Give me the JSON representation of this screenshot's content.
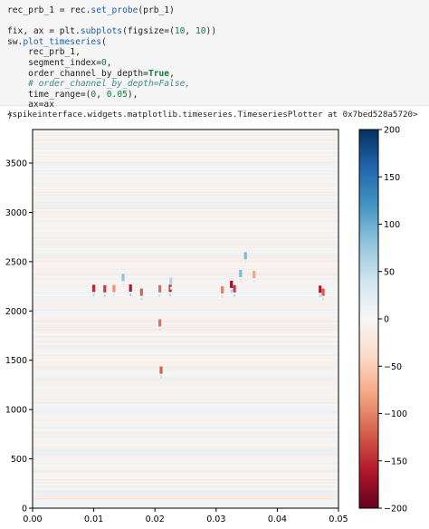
{
  "code_cell": {
    "lines": [
      [
        {
          "t": "rec_prb_1 = rec.",
          "c": "name"
        },
        {
          "t": "set_probe",
          "c": "fn"
        },
        {
          "t": "(prb_1)",
          "c": "name"
        }
      ],
      [],
      [
        {
          "t": "fix, ax = plt.",
          "c": "name"
        },
        {
          "t": "subplots",
          "c": "fn"
        },
        {
          "t": "(figsize=(",
          "c": "name"
        },
        {
          "t": "10",
          "c": "num"
        },
        {
          "t": ", ",
          "c": "name"
        },
        {
          "t": "10",
          "c": "num"
        },
        {
          "t": "))",
          "c": "name"
        }
      ],
      [
        {
          "t": "sw.",
          "c": "name"
        },
        {
          "t": "plot_timeseries",
          "c": "fn"
        },
        {
          "t": "(",
          "c": "name"
        }
      ],
      [
        {
          "t": "    rec_prb_1,",
          "c": "name"
        }
      ],
      [
        {
          "t": "    segment_index=",
          "c": "name"
        },
        {
          "t": "0",
          "c": "num"
        },
        {
          "t": ",",
          "c": "name"
        }
      ],
      [
        {
          "t": "    order_channel_by_depth=",
          "c": "name"
        },
        {
          "t": "True",
          "c": "kw"
        },
        {
          "t": ",",
          "c": "name"
        }
      ],
      [
        {
          "t": "    # order_channel_by_depth=False,",
          "c": "com"
        }
      ],
      [
        {
          "t": "    time_range=(",
          "c": "name"
        },
        {
          "t": "0",
          "c": "num"
        },
        {
          "t": ", ",
          "c": "name"
        },
        {
          "t": "0.05",
          "c": "num"
        },
        {
          "t": "),",
          "c": "name"
        }
      ],
      [
        {
          "t": "    ax=ax",
          "c": "name"
        }
      ],
      [
        {
          "t": ")",
          "c": "name"
        }
      ]
    ]
  },
  "output_text": "<spikeinterface.widgets.matplotlib.timeseries.TimeseriesPlotter at 0x7bed528a5720>",
  "chart_data": {
    "type": "heatmap",
    "title": "",
    "xlabel": "",
    "ylabel": "",
    "x_range": [
      0.0,
      0.05
    ],
    "y_range": [
      0,
      3840
    ],
    "x_ticks": [
      "0.00",
      "0.01",
      "0.02",
      "0.03",
      "0.04",
      "0.05"
    ],
    "x_tick_values": [
      0.0,
      0.01,
      0.02,
      0.03,
      0.04,
      0.05
    ],
    "y_ticks": [
      "0",
      "500",
      "1000",
      "1500",
      "2000",
      "2500",
      "3000",
      "3500"
    ],
    "y_tick_values": [
      0,
      500,
      1000,
      1500,
      2000,
      2500,
      3000,
      3500
    ],
    "colormap": "RdBu",
    "color_range": [
      -200,
      200
    ],
    "colorbar_ticks": [
      "200",
      "150",
      "100",
      "50",
      "0",
      "−50",
      "−100",
      "−150",
      "−200"
    ],
    "colorbar_tick_values": [
      200,
      150,
      100,
      50,
      0,
      -50,
      -100,
      -150,
      -200
    ],
    "spike_events": [
      {
        "t": 0.01,
        "depth": 2230,
        "amp": -150
      },
      {
        "t": 0.0118,
        "depth": 2225,
        "amp": -140
      },
      {
        "t": 0.0133,
        "depth": 2228,
        "amp": -90
      },
      {
        "t": 0.016,
        "depth": 2232,
        "amp": -160
      },
      {
        "t": 0.0178,
        "depth": 2190,
        "amp": -120
      },
      {
        "t": 0.0208,
        "depth": 2225,
        "amp": -110
      },
      {
        "t": 0.0225,
        "depth": 2230,
        "amp": -150
      },
      {
        "t": 0.031,
        "depth": 2215,
        "amp": -100
      },
      {
        "t": 0.0325,
        "depth": 2270,
        "amp": -170
      },
      {
        "t": 0.033,
        "depth": 2225,
        "amp": -140
      },
      {
        "t": 0.047,
        "depth": 2220,
        "amp": -160
      },
      {
        "t": 0.0475,
        "depth": 2190,
        "amp": -120
      },
      {
        "t": 0.021,
        "depth": 1400,
        "amp": -120
      },
      {
        "t": 0.0208,
        "depth": 1880,
        "amp": -110
      },
      {
        "t": 0.0348,
        "depth": 2560,
        "amp": 90
      },
      {
        "t": 0.0362,
        "depth": 2370,
        "amp": -80
      },
      {
        "t": 0.034,
        "depth": 2380,
        "amp": 90
      },
      {
        "t": 0.0148,
        "depth": 2340,
        "amp": 80
      },
      {
        "t": 0.0226,
        "depth": 2300,
        "amp": 60
      }
    ]
  }
}
